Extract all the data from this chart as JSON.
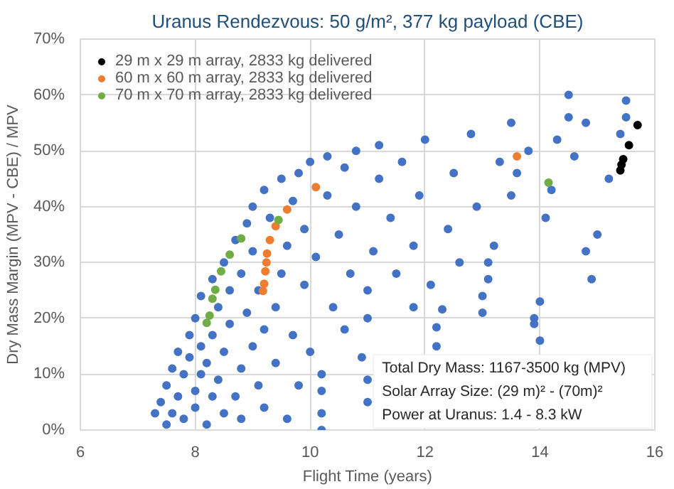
{
  "chart_data": {
    "type": "scatter",
    "title": "Uranus Rendezvous: 50 g/m², 377 kg payload (CBE)",
    "xlabel": "Flight Time (years)",
    "ylabel": "Dry Mass Margin (MPV - CBE) / MPV",
    "xlim": [
      6,
      16
    ],
    "xticks": [
      6,
      8,
      10,
      12,
      14,
      16
    ],
    "ylim": [
      0,
      70
    ],
    "yticks": [
      {
        "value": 0,
        "label": "0%"
      },
      {
        "value": 10,
        "label": "10%"
      },
      {
        "value": 20,
        "label": "20%"
      },
      {
        "value": 30,
        "label": "30%"
      },
      {
        "value": 40,
        "label": "40%"
      },
      {
        "value": 50,
        "label": "50%"
      },
      {
        "value": 60,
        "label": "60%"
      },
      {
        "value": 70,
        "label": "70%"
      }
    ],
    "grid": true,
    "legend": "top left",
    "marker": "circle",
    "annotations": [
      "Total Dry Mass: 1167-3500 kg (MPV)",
      "Solar Array Size: (29 m)² - (70m)²",
      "Power at Uranus: 1.4 - 8.3 kW"
    ],
    "series": [
      {
        "color": "#4472c4",
        "x": [
          7.3,
          7.4,
          7.5,
          7.5,
          7.6,
          7.6,
          7.7,
          7.7,
          7.8,
          7.8,
          7.9,
          7.9,
          8.0,
          8.0,
          8.0,
          8.1,
          8.1,
          8.1,
          8.2,
          8.2,
          8.3,
          8.3,
          8.3,
          8.4,
          8.4,
          8.5,
          8.5,
          8.5,
          8.6,
          8.6,
          8.7,
          8.7,
          8.8,
          8.8,
          8.8,
          8.9,
          8.9,
          9.0,
          9.0,
          9.0,
          9.1,
          9.1,
          9.2,
          9.2,
          9.2,
          9.3,
          9.4,
          9.4,
          9.5,
          9.5,
          9.6,
          9.6,
          9.7,
          9.7,
          9.8,
          9.8,
          9.9,
          9.9,
          10.0,
          10.0,
          10.1,
          10.2,
          10.2,
          10.2,
          10.2,
          10.3,
          10.3,
          10.4,
          10.5,
          10.6,
          10.6,
          10.7,
          10.8,
          10.8,
          10.9,
          11.0,
          11.0,
          11.0,
          11.0,
          11.1,
          11.2,
          11.2,
          11.4,
          11.5,
          11.6,
          11.8,
          11.8,
          11.9,
          12.0,
          12.1,
          12.2,
          12.2,
          12.3,
          12.4,
          12.5,
          12.6,
          12.8,
          12.9,
          13.0,
          13.0,
          13.1,
          13.1,
          13.2,
          13.3,
          13.5,
          13.5,
          13.6,
          13.8,
          13.9,
          13.9,
          14.0,
          14.0,
          14.1,
          14.2,
          14.3,
          14.5,
          14.6,
          14.8,
          14.9,
          15.0,
          15.2,
          15.4,
          15.5,
          15.5,
          14.5,
          14.8
        ],
        "values": [
          3,
          5,
          1,
          8,
          11,
          3,
          14,
          6,
          2,
          10,
          17,
          13,
          7,
          20,
          4,
          15,
          24,
          10,
          1,
          12,
          6,
          17,
          27,
          22,
          9,
          3,
          30,
          14,
          19,
          25,
          34,
          6,
          11,
          28,
          2,
          37,
          21,
          15,
          32,
          40,
          8,
          25,
          43,
          4,
          18,
          38,
          12,
          22,
          45,
          28,
          2,
          33,
          41,
          17,
          8,
          46,
          26,
          36,
          48,
          14,
          31,
          0,
          3,
          7,
          10,
          42,
          49,
          22,
          35,
          47,
          18,
          28,
          50,
          40,
          13,
          5,
          9,
          20,
          25,
          32,
          45,
          51,
          38,
          28,
          48,
          22,
          33,
          42,
          52,
          26,
          18.4,
          15,
          21.6,
          36,
          46,
          30,
          53,
          40,
          21,
          24,
          27,
          30,
          33,
          48,
          42,
          55,
          46,
          50,
          19,
          20,
          16,
          23,
          38,
          43,
          52,
          56,
          49,
          32,
          27,
          35,
          45,
          53,
          56,
          59,
          60,
          55
        ]
      },
      {
        "name": "29 m x 29 m array, 2833 kg delivered",
        "color": "#000000",
        "x": [
          15.4,
          15.42,
          15.45,
          15.55,
          15.7
        ],
        "values": [
          46.5,
          47.5,
          48.5,
          51,
          54.6
        ]
      },
      {
        "name": "60 m x 60 m array, 2833 kg delivered",
        "color": "#ed7d31",
        "x": [
          10.1,
          9.6,
          9.4,
          9.3,
          9.25,
          9.24,
          9.22,
          9.2,
          9.18,
          13.6
        ],
        "values": [
          43.5,
          39.5,
          36.5,
          34,
          31.6,
          30,
          28.4,
          26.2,
          24.9,
          49
        ]
      },
      {
        "name": "70 m x 70 m array, 2833 kg delivered",
        "color": "#70ad47",
        "x": [
          9.45,
          8.8,
          8.6,
          8.45,
          8.35,
          8.3,
          8.25,
          8.2,
          14.15
        ],
        "values": [
          37.6,
          34.3,
          31.4,
          28.4,
          25.1,
          23.5,
          20.5,
          19.2,
          44.3
        ]
      }
    ]
  }
}
